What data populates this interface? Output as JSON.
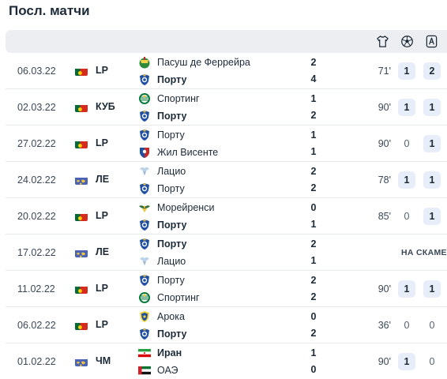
{
  "page": {
    "title": "Посл. матчи"
  },
  "header": {
    "icons": [
      "shirt-icon",
      "ball-icon",
      "assist-icon"
    ]
  },
  "matches": [
    {
      "date": "06.03.22",
      "flag": "portugal",
      "comp": "LP",
      "home": {
        "name": "Пасуш де Феррейра",
        "logo": "pacos",
        "bold": false,
        "score": "2"
      },
      "away": {
        "name": "Порту",
        "logo": "porto",
        "bold": true,
        "score": "4"
      },
      "minutes": "71'",
      "goals": "1",
      "goals_hl": true,
      "assists": "2",
      "assists_hl": true,
      "bench": ""
    },
    {
      "date": "02.03.22",
      "flag": "portugal",
      "comp": "КУБ",
      "home": {
        "name": "Спортинг",
        "logo": "sporting",
        "bold": false,
        "score": "1"
      },
      "away": {
        "name": "Порту",
        "logo": "porto",
        "bold": true,
        "score": "2"
      },
      "minutes": "90'",
      "goals": "1",
      "goals_hl": true,
      "assists": "1",
      "assists_hl": true,
      "bench": ""
    },
    {
      "date": "27.02.22",
      "flag": "portugal",
      "comp": "LP",
      "home": {
        "name": "Порту",
        "logo": "porto",
        "bold": false,
        "score": "1"
      },
      "away": {
        "name": "Жил Висенте",
        "logo": "gilvicente",
        "bold": false,
        "score": "1"
      },
      "minutes": "90'",
      "goals": "0",
      "goals_hl": false,
      "assists": "1",
      "assists_hl": true,
      "bench": ""
    },
    {
      "date": "24.02.22",
      "flag": "europe",
      "comp": "ЛЕ",
      "home": {
        "name": "Лацио",
        "logo": "lazio",
        "bold": false,
        "score": "2"
      },
      "away": {
        "name": "Порту",
        "logo": "porto",
        "bold": false,
        "score": "2"
      },
      "minutes": "78'",
      "goals": "1",
      "goals_hl": true,
      "assists": "1",
      "assists_hl": true,
      "bench": ""
    },
    {
      "date": "20.02.22",
      "flag": "portugal",
      "comp": "LP",
      "home": {
        "name": "Морейренси",
        "logo": "moreirense",
        "bold": false,
        "score": "0"
      },
      "away": {
        "name": "Порту",
        "logo": "porto",
        "bold": true,
        "score": "1"
      },
      "minutes": "85'",
      "goals": "0",
      "goals_hl": false,
      "assists": "1",
      "assists_hl": true,
      "bench": ""
    },
    {
      "date": "17.02.22",
      "flag": "europe",
      "comp": "ЛЕ",
      "home": {
        "name": "Порту",
        "logo": "porto",
        "bold": true,
        "score": "2"
      },
      "away": {
        "name": "Лацио",
        "logo": "lazio",
        "bold": false,
        "score": "1"
      },
      "minutes": "",
      "goals": "",
      "goals_hl": false,
      "assists": "",
      "assists_hl": false,
      "bench": "НА СКАМЕЙКЕ"
    },
    {
      "date": "11.02.22",
      "flag": "portugal",
      "comp": "LP",
      "home": {
        "name": "Порту",
        "logo": "porto",
        "bold": false,
        "score": "2"
      },
      "away": {
        "name": "Спортинг",
        "logo": "sporting",
        "bold": false,
        "score": "2"
      },
      "minutes": "90'",
      "goals": "1",
      "goals_hl": true,
      "assists": "1",
      "assists_hl": true,
      "bench": ""
    },
    {
      "date": "06.02.22",
      "flag": "portugal",
      "comp": "LP",
      "home": {
        "name": "Арока",
        "logo": "arouca",
        "bold": false,
        "score": "0"
      },
      "away": {
        "name": "Порту",
        "logo": "porto",
        "bold": true,
        "score": "2"
      },
      "minutes": "36'",
      "goals": "0",
      "goals_hl": false,
      "assists": "0",
      "assists_hl": false,
      "bench": ""
    },
    {
      "date": "01.02.22",
      "flag": "world",
      "comp": "ЧМ",
      "home": {
        "name": "Иран",
        "logo": "iran",
        "bold": true,
        "score": "1"
      },
      "away": {
        "name": "ОАЭ",
        "logo": "uae",
        "bold": false,
        "score": "0"
      },
      "minutes": "90'",
      "goals": "1",
      "goals_hl": true,
      "assists": "0",
      "assists_hl": false,
      "bench": ""
    }
  ]
}
